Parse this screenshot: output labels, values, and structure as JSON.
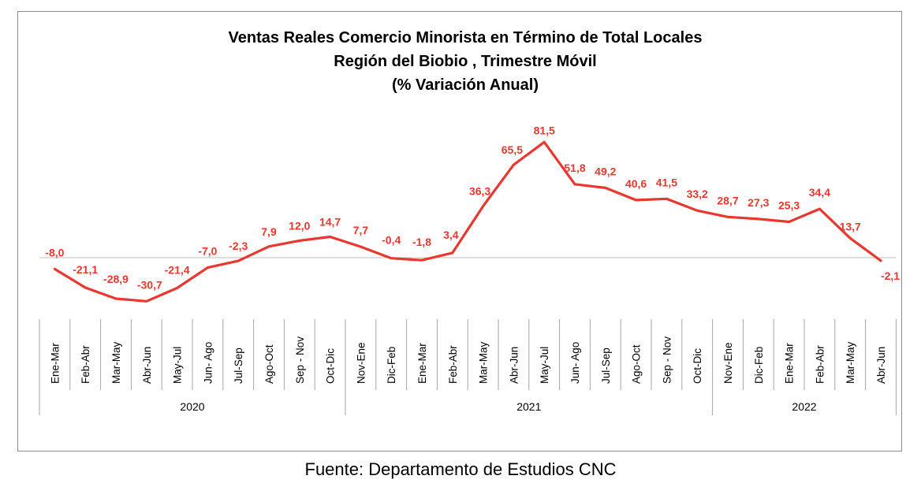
{
  "chart_data": {
    "type": "line",
    "title_lines": [
      "Ventas Reales Comercio Minorista  en Término de Total Locales",
      "Región del Biobio , Trimestre Móvil",
      "(% Variación Anual)"
    ],
    "categories": [
      "Ene-Mar",
      "Feb-Abr",
      "Mar-May",
      "Abr-Jun",
      "May-Jul",
      "Jun- Ago",
      "Jul-Sep",
      "Ago-Oct",
      "Sep - Nov",
      "Oct-Dic",
      "Nov-Ene",
      "Dic-Feb",
      "Ene-Mar",
      "Feb-Abr",
      "Mar-May",
      "Abr-Jun",
      "May-Jul",
      "Jun- Ago",
      "Jul-Sep",
      "Ago-Oct",
      "Sep - Nov",
      "Oct-Dic",
      "Nov-Ene",
      "Dic-Feb",
      "Ene-Mar",
      "Feb-Abr",
      "Mar-May",
      "Abr-Jun"
    ],
    "groups": [
      {
        "label": "2020",
        "count": 10
      },
      {
        "label": "2021",
        "count": 12
      },
      {
        "label": "2022",
        "count": 6
      }
    ],
    "series": [
      {
        "values": [
          -8.0,
          -21.1,
          -28.9,
          -30.7,
          -21.4,
          -7.0,
          -2.3,
          7.9,
          12.0,
          14.7,
          7.7,
          -0.4,
          -1.8,
          3.4,
          36.3,
          65.5,
          81.5,
          51.8,
          49.2,
          40.6,
          41.5,
          33.2,
          28.7,
          27.3,
          25.3,
          34.4,
          13.7,
          -2.1
        ],
        "labels": [
          "-8,0",
          "-21,1",
          "-28,9",
          "-30,7",
          "-21,4",
          "-7,0",
          "-2,3",
          "7,9",
          "12,0",
          "14,7",
          "7,7",
          "-0,4",
          "-1,8",
          "3,4",
          "36,3",
          "65,5",
          "81,5",
          "51,8",
          "49,2",
          "40,6",
          "41,5",
          "33,2",
          "28,7",
          "27,3",
          "25,3",
          "34,4",
          "13,7",
          "-2,1"
        ],
        "color": "#e8382f"
      }
    ],
    "ylim": [
      -45,
      95
    ],
    "grid": false,
    "legend": "none"
  },
  "footer": {
    "source": "Fuente: Departamento de Estudios CNC"
  },
  "colors": {
    "line": "#e8382f",
    "label": "#e8382f",
    "axis": "#a6a6a6"
  }
}
